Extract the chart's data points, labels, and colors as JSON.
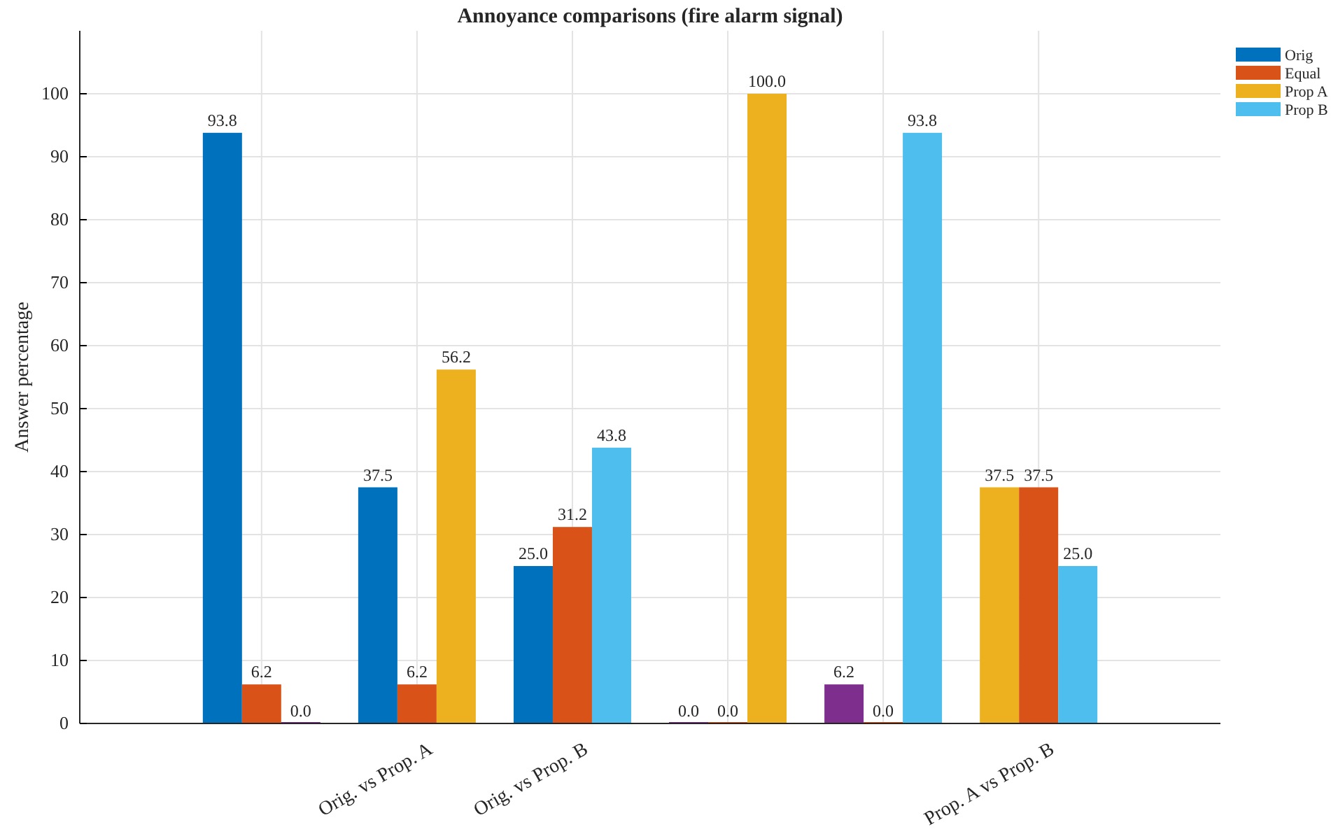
{
  "chart_data": {
    "type": "bar",
    "title": "Annoyance comparisons (fire alarm signal)",
    "ylabel": "Answer percentage",
    "categories": [
      null,
      "Orig. vs Prop. A",
      "Orig. vs Prop. B",
      null,
      null,
      "Prop. A vs Prop. B"
    ],
    "series": [
      {
        "name": "Orig",
        "color": "#0072bd",
        "values": [
          93.8,
          37.5,
          25,
          null,
          null,
          null
        ],
        "value_labels": [
          "93.8",
          "37.5",
          "25.0",
          null,
          null,
          null
        ]
      },
      {
        "name": "Equal",
        "color": "#d95319",
        "values": [
          6.2,
          6.2,
          31.2,
          0,
          0,
          37.5
        ],
        "value_labels": [
          "6.2",
          "6.2",
          "31.2",
          "0.0",
          "0.0",
          "37.5"
        ]
      },
      {
        "color": "#7e2f8e",
        "values": [
          0,
          null,
          null,
          0,
          6.2,
          null
        ],
        "value_labels": [
          "0.0",
          null,
          null,
          "0.0",
          "6.2",
          null
        ]
      },
      {
        "name": "Prop A",
        "color": "#edb120",
        "values": [
          null,
          56.2,
          null,
          100,
          null,
          37.5
        ],
        "value_labels": [
          null,
          "56.2",
          null,
          "100.0",
          null,
          "37.5"
        ]
      },
      {
        "name": "Prop B",
        "color": "#4dbeee",
        "values": [
          null,
          null,
          43.8,
          null,
          93.8,
          25
        ],
        "value_labels": [
          null,
          null,
          "43.8",
          null,
          "93.8",
          "25.0"
        ]
      }
    ],
    "ylim": [
      0,
      110
    ],
    "yticks": [
      0,
      10,
      20,
      30,
      40,
      50,
      60,
      70,
      80,
      90,
      100
    ],
    "grid": true,
    "legend": "top right"
  }
}
